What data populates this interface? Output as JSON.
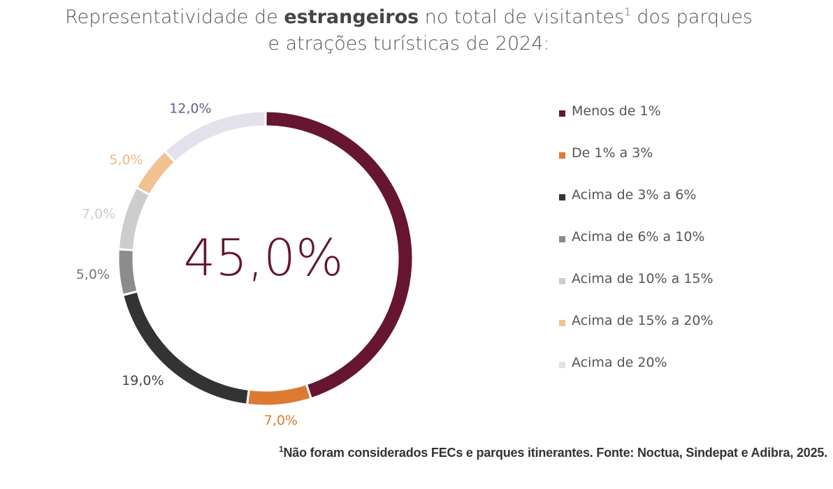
{
  "title": {
    "line1_pre": "Representatividade de ",
    "line1_bold": "estrangeiros",
    "line1_post": " no total de visitantes",
    "line1_sup": "1",
    "line1_end": " dos parques",
    "line2": "e atrações turísticas de 2024:"
  },
  "chart_data": {
    "type": "pie",
    "donut": true,
    "center_label": "45,0%",
    "legend_position": "right",
    "categories": [
      "Menos de 1%",
      "De 1% a 3%",
      "Acima de 3% a 6%",
      "Acima de 6% a 10%",
      "Acima de 10% a 15%",
      "Acima de 15% a 20%",
      "Acima de 20%"
    ],
    "values": [
      45.0,
      7.0,
      19.0,
      5.0,
      7.0,
      5.0,
      12.0
    ],
    "labels": [
      "",
      "7,0%",
      "19,0%",
      "5,0%",
      "7,0%",
      "5,0%",
      "12,0%"
    ],
    "colors": [
      "#661533",
      "#dd7a31",
      "#333333",
      "#8c8c8c",
      "#cdcdcd",
      "#f2c190",
      "#e4e1ec"
    ],
    "label_colors": [
      "#661533",
      "#dd7a31",
      "#444444",
      "#777777",
      "#cccccc",
      "#f0b887",
      "#6a5a8c"
    ]
  },
  "footnote": {
    "sup": "1",
    "text": "Não foram considerados FECs e parques itinerantes. Fonte: Noctua, Sindepat e Adibra, 2025."
  }
}
